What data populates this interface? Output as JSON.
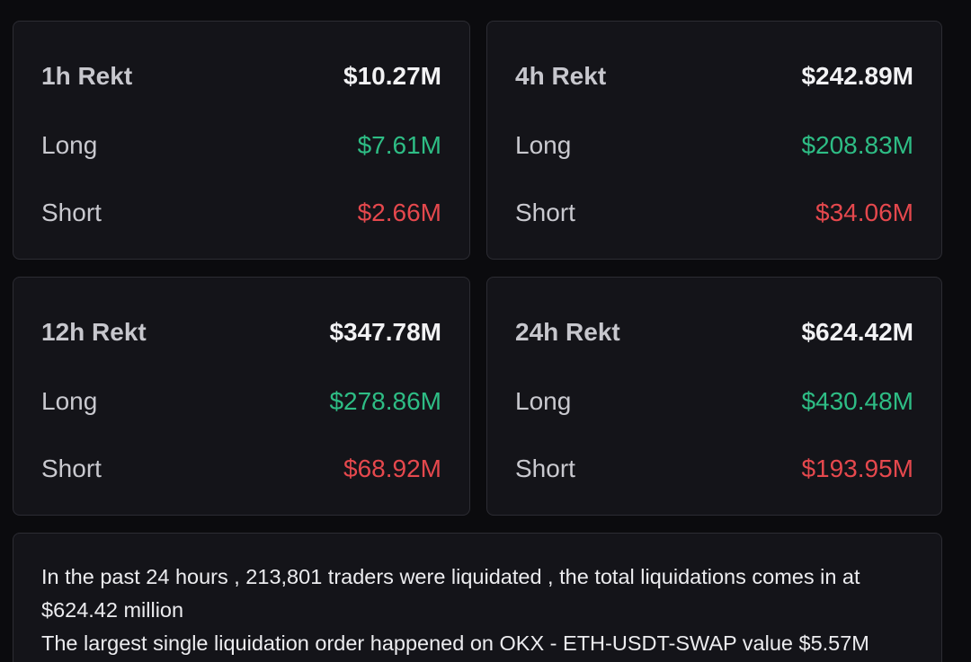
{
  "colors": {
    "background": "#0b0b0e",
    "card": "#141419",
    "border": "#2c2c33",
    "long": "#2ebd85",
    "short": "#e5484d"
  },
  "cards": [
    {
      "title": "1h Rekt",
      "total": "$10.27M",
      "long_label": "Long",
      "long": "$7.61M",
      "short_label": "Short",
      "short": "$2.66M"
    },
    {
      "title": "4h Rekt",
      "total": "$242.89M",
      "long_label": "Long",
      "long": "$208.83M",
      "short_label": "Short",
      "short": "$34.06M"
    },
    {
      "title": "12h Rekt",
      "total": "$347.78M",
      "long_label": "Long",
      "long": "$278.86M",
      "short_label": "Short",
      "short": "$68.92M"
    },
    {
      "title": "24h Rekt",
      "total": "$624.42M",
      "long_label": "Long",
      "long": "$430.48M",
      "short_label": "Short",
      "short": "$193.95M"
    }
  ],
  "summary": {
    "line1": "In the past 24 hours , 213,801 traders were liquidated , the total liquidations comes in at $624.42 million",
    "line2": "The largest single liquidation order happened on OKX - ETH-USDT-SWAP value $5.57M"
  }
}
